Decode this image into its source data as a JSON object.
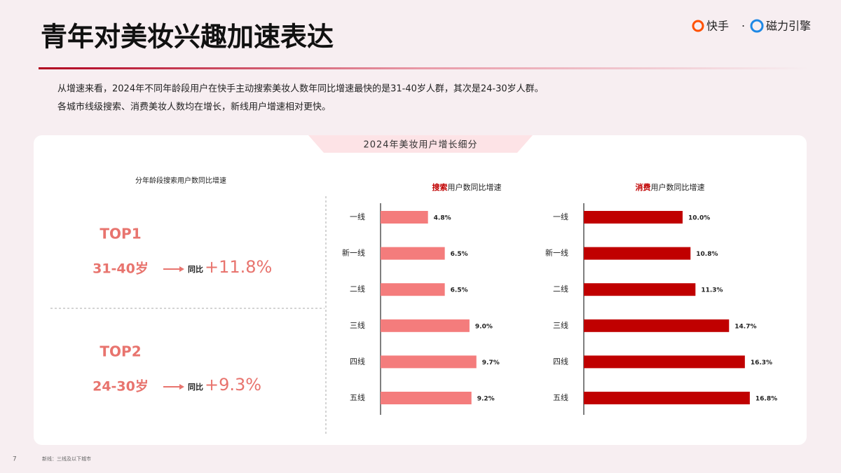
{
  "header": {
    "title": "青年对美妆兴趣加速表达",
    "brand_left": "快手",
    "separator": "·",
    "brand_right": "磁力引擎"
  },
  "summary": [
    "从增速来看，2024年不同年龄段用户在快手主动搜索美妆人数年同比增速最快的是31-40岁人群，其次是24-30岁人群。",
    "各城市线级搜索、消费美妆人数均在增长，新线用户增速相对更快。"
  ],
  "panel_title": "2024年美妆用户增长细分",
  "age_section": {
    "title": "分年龄段搜索用户数同比增速",
    "items": [
      {
        "rank": "TOP1",
        "age": "31-40岁",
        "label": "同比",
        "value": "+11.8%"
      },
      {
        "rank": "TOP2",
        "age": "24-30岁",
        "label": "同比",
        "value": "+9.3%"
      }
    ]
  },
  "chart_data": [
    {
      "type": "bar",
      "orientation": "horizontal",
      "title_keyword": "搜索",
      "title": "用户数同比增速",
      "color": "#f47c7c",
      "categories": [
        "一线",
        "新一线",
        "二线",
        "三线",
        "四线",
        "五线"
      ],
      "values": [
        4.8,
        6.5,
        6.5,
        9.0,
        9.7,
        9.2
      ],
      "value_labels": [
        "4.8%",
        "6.5%",
        "6.5%",
        "9.0%",
        "9.7%",
        "9.2%"
      ]
    },
    {
      "type": "bar",
      "orientation": "horizontal",
      "title_keyword": "消费",
      "title": "用户数同比增速",
      "color": "#c00000",
      "categories": [
        "一线",
        "新一线",
        "二线",
        "三线",
        "四线",
        "五线"
      ],
      "values": [
        10.0,
        10.8,
        11.3,
        14.7,
        16.3,
        16.8
      ],
      "value_labels": [
        "10.0%",
        "10.8%",
        "11.3%",
        "14.7%",
        "16.3%",
        "16.8%"
      ]
    }
  ],
  "page_number": "7",
  "footnote": "新线：三线及以下城市"
}
